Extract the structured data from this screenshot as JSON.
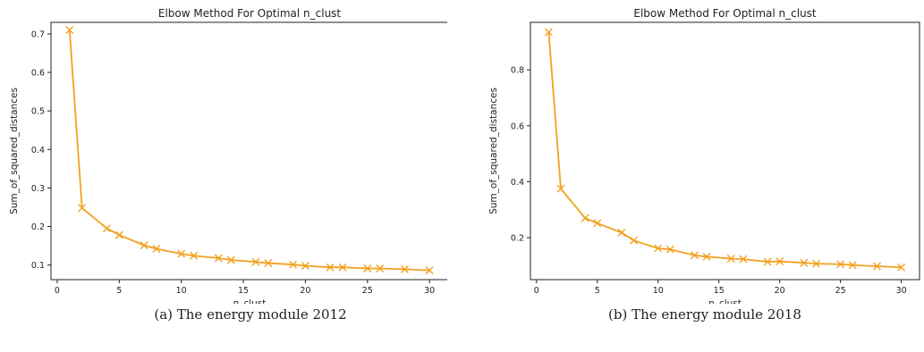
{
  "captions": {
    "a": "(a) The energy module 2012",
    "b": "(b) The energy module 2018"
  },
  "colors": {
    "series": "#F2A01E",
    "axis": "#222222"
  },
  "chart_data": [
    {
      "type": "line",
      "title": "Elbow Method For Optimal n_clust",
      "xlabel": "n_clust",
      "ylabel": "Sum_of_squared_distances",
      "marker": "x",
      "xlim": [
        -0.5,
        31.5
      ],
      "ylim": [
        0.062,
        0.73
      ],
      "xticks": [
        0,
        5,
        10,
        15,
        20,
        25,
        30
      ],
      "yticks": [
        0.1,
        0.2,
        0.3,
        0.4,
        0.5,
        0.6,
        0.7
      ],
      "x": [
        1,
        2,
        4,
        5,
        7,
        8,
        10,
        11,
        13,
        14,
        16,
        17,
        19,
        20,
        22,
        23,
        25,
        26,
        28,
        30
      ],
      "y": [
        0.71,
        0.248,
        0.195,
        0.178,
        0.151,
        0.142,
        0.129,
        0.124,
        0.118,
        0.113,
        0.108,
        0.105,
        0.101,
        0.098,
        0.094,
        0.094,
        0.091,
        0.091,
        0.089,
        0.086
      ]
    },
    {
      "type": "line",
      "title": "Elbow Method For Optimal n_clust",
      "xlabel": "n_clust",
      "ylabel": "Sum_of_squared_distances",
      "marker": "x",
      "xlim": [
        -0.5,
        31.5
      ],
      "ylim": [
        0.05,
        0.97
      ],
      "xticks": [
        0,
        5,
        10,
        15,
        20,
        25,
        30
      ],
      "yticks": [
        0.2,
        0.4,
        0.6,
        0.8
      ],
      "x": [
        1,
        2,
        4,
        5,
        7,
        8,
        10,
        11,
        13,
        14,
        16,
        17,
        19,
        20,
        22,
        23,
        25,
        26,
        28,
        30
      ],
      "y": [
        0.935,
        0.375,
        0.27,
        0.252,
        0.218,
        0.19,
        0.162,
        0.158,
        0.137,
        0.132,
        0.125,
        0.123,
        0.114,
        0.115,
        0.11,
        0.107,
        0.105,
        0.102,
        0.098,
        0.094
      ]
    }
  ]
}
